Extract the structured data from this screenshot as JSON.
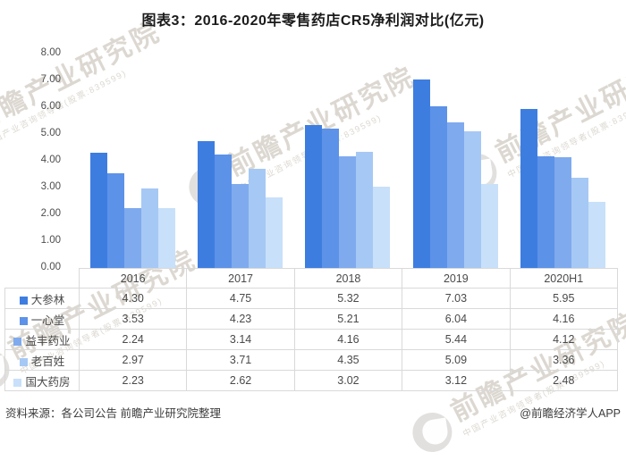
{
  "title": "图表3：2016-2020年零售药店CR5净利润对比(亿元)",
  "source_note": "资料来源：各公司公告 前瞻产业研究院整理",
  "credit": "@前瞻经济学人APP",
  "watermark": {
    "main": "前瞻产业研究院",
    "sub": "中国产业咨询领导者(股票:839599)"
  },
  "colors": {
    "series": [
      "#3E7DE0",
      "#5C92E8",
      "#7FAAEE",
      "#A6C8F4",
      "#C8E0FA"
    ],
    "table_border": "#D9D9D9",
    "text": "#4A4A4A"
  },
  "chart_data": {
    "type": "bar",
    "title": "图表3：2016-2020年零售药店CR5净利润对比(亿元)",
    "categories": [
      "2016",
      "2017",
      "2018",
      "2019",
      "2020H1"
    ],
    "series": [
      {
        "name": "大参林",
        "values": [
          4.3,
          4.75,
          5.32,
          7.03,
          5.95
        ]
      },
      {
        "name": "一心堂",
        "values": [
          3.53,
          4.23,
          5.21,
          6.04,
          4.16
        ]
      },
      {
        "name": "益丰药业",
        "values": [
          2.24,
          3.14,
          4.16,
          5.44,
          4.12
        ]
      },
      {
        "name": "老百姓",
        "values": [
          2.97,
          3.71,
          4.35,
          5.09,
          3.36
        ]
      },
      {
        "name": "国大药房",
        "values": [
          2.23,
          2.62,
          3.02,
          3.12,
          2.48
        ]
      }
    ],
    "xlabel": "",
    "ylabel": "",
    "ylim": [
      0,
      8
    ],
    "ytick_step": 1,
    "ytick_labels": [
      "0.00",
      "1.00",
      "2.00",
      "3.00",
      "4.00",
      "5.00",
      "6.00",
      "7.00",
      "8.00"
    ],
    "grid": false,
    "legend_position": "data-table-left-column",
    "value_format": "0.00"
  }
}
